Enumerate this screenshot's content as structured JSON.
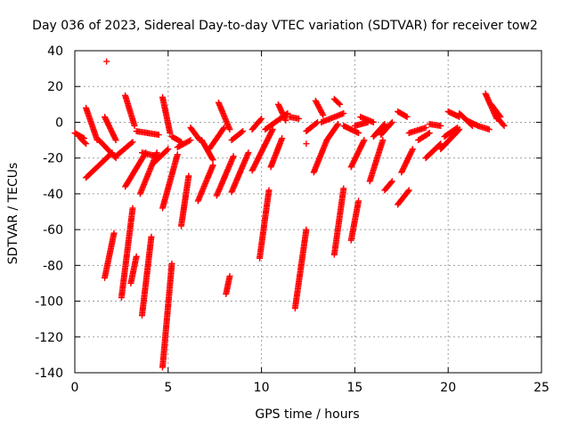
{
  "chart_data": {
    "type": "scatter",
    "title": "Day 036 of 2023, Sidereal Day-to-day VTEC variation (SDTVAR) for receiver tow2",
    "xlabel": "GPS time / hours",
    "ylabel": "SDTVAR / TECUs",
    "xlim": [
      0,
      25
    ],
    "ylim": [
      -140,
      40
    ],
    "xticks": [
      0,
      5,
      10,
      15,
      20,
      25
    ],
    "yticks": [
      -140,
      -120,
      -100,
      -80,
      -60,
      -40,
      -20,
      0,
      20,
      40
    ],
    "xtick_labels": [
      "0",
      "5",
      "10",
      "15",
      "20",
      "25"
    ],
    "ytick_labels": [
      "-140",
      "-120",
      "-100",
      "-80",
      "-60",
      "-40",
      "-20",
      "0",
      "20",
      "40"
    ],
    "grid": true,
    "marker": "plus",
    "marker_color": "#ff0000",
    "arcs": [
      {
        "name": "arc-01",
        "x": [
          0.0,
          0.5
        ],
        "y": [
          -6,
          -9
        ]
      },
      {
        "name": "arc-02",
        "x": [
          0.3,
          0.6
        ],
        "y": [
          -9,
          -12
        ]
      },
      {
        "name": "arc-03",
        "x": [
          0.6,
          1.2
        ],
        "y": [
          8,
          -10
        ]
      },
      {
        "name": "arc-04",
        "x": [
          0.6,
          2.0
        ],
        "y": [
          -31,
          -17
        ]
      },
      {
        "name": "arc-05",
        "x": [
          1.3,
          2.2
        ],
        "y": [
          -10,
          -20
        ]
      },
      {
        "name": "arc-06",
        "x": [
          1.6,
          2.2
        ],
        "y": [
          3,
          -10
        ]
      },
      {
        "name": "arc-07",
        "x": [
          1.6,
          2.1
        ],
        "y": [
          -87,
          -62
        ]
      },
      {
        "name": "arc-08",
        "x": [
          2.2,
          3.1
        ],
        "y": [
          -19,
          -11
        ]
      },
      {
        "name": "arc-09",
        "x": [
          2.5,
          3.1
        ],
        "y": [
          -98,
          -48
        ]
      },
      {
        "name": "arc-10",
        "x": [
          2.7,
          3.8
        ],
        "y": [
          -36,
          -17
        ]
      },
      {
        "name": "arc-11",
        "x": [
          2.7,
          3.2
        ],
        "y": [
          15,
          -2
        ]
      },
      {
        "name": "arc-12",
        "x": [
          3.0,
          3.3
        ],
        "y": [
          -90,
          -75
        ]
      },
      {
        "name": "arc-13",
        "x": [
          3.3,
          4.5
        ],
        "y": [
          -5,
          -7
        ]
      },
      {
        "name": "arc-14",
        "x": [
          3.5,
          4.4
        ],
        "y": [
          -40,
          -17
        ]
      },
      {
        "name": "arc-15",
        "x": [
          3.6,
          4.4
        ],
        "y": [
          -17,
          -19
        ]
      },
      {
        "name": "arc-16",
        "x": [
          3.6,
          4.1
        ],
        "y": [
          -108,
          -64
        ]
      },
      {
        "name": "arc-17",
        "x": [
          4.2,
          5.0
        ],
        "y": [
          -23,
          -15
        ]
      },
      {
        "name": "arc-18",
        "x": [
          4.7,
          5.5
        ],
        "y": [
          -48,
          -18
        ]
      },
      {
        "name": "arc-19",
        "x": [
          4.7,
          5.2
        ],
        "y": [
          -137,
          -79
        ]
      },
      {
        "name": "arc-20",
        "x": [
          4.7,
          5.1
        ],
        "y": [
          14,
          -6
        ]
      },
      {
        "name": "arc-21",
        "x": [
          5.2,
          5.7
        ],
        "y": [
          -8,
          -11
        ]
      },
      {
        "name": "arc-22",
        "x": [
          5.5,
          6.2
        ],
        "y": [
          -14,
          -10
        ]
      },
      {
        "name": "arc-23",
        "x": [
          5.7,
          6.1
        ],
        "y": [
          -58,
          -30
        ]
      },
      {
        "name": "arc-24",
        "x": [
          6.2,
          6.7
        ],
        "y": [
          -3,
          -10
        ]
      },
      {
        "name": "arc-25",
        "x": [
          6.6,
          7.4
        ],
        "y": [
          -44,
          -24
        ]
      },
      {
        "name": "arc-26",
        "x": [
          6.8,
          7.4
        ],
        "y": [
          -10,
          -21
        ]
      },
      {
        "name": "arc-27",
        "x": [
          7.2,
          8.0
        ],
        "y": [
          -15,
          -3
        ]
      },
      {
        "name": "arc-28",
        "x": [
          7.6,
          8.5
        ],
        "y": [
          -41,
          -19
        ]
      },
      {
        "name": "arc-29",
        "x": [
          7.7,
          8.3
        ],
        "y": [
          11,
          -4
        ]
      },
      {
        "name": "arc-30",
        "x": [
          8.1,
          8.3
        ],
        "y": [
          -96,
          -86
        ]
      },
      {
        "name": "arc-31",
        "x": [
          8.4,
          9.3
        ],
        "y": [
          -39,
          -17
        ]
      },
      {
        "name": "arc-32",
        "x": [
          8.4,
          9.0
        ],
        "y": [
          -10,
          -5
        ]
      },
      {
        "name": "arc-33",
        "x": [
          9.5,
          10.6
        ],
        "y": [
          -27,
          -4
        ]
      },
      {
        "name": "arc-34",
        "x": [
          9.5,
          10.0
        ],
        "y": [
          -4,
          2
        ]
      },
      {
        "name": "arc-35",
        "x": [
          9.9,
          10.4
        ],
        "y": [
          -76,
          -38
        ]
      },
      {
        "name": "arc-36",
        "x": [
          10.2,
          11.4
        ],
        "y": [
          -4,
          5
        ]
      },
      {
        "name": "arc-37",
        "x": [
          10.5,
          11.1
        ],
        "y": [
          -25,
          -9
        ]
      },
      {
        "name": "arc-38",
        "x": [
          10.9,
          11.3
        ],
        "y": [
          10,
          1
        ]
      },
      {
        "name": "arc-39",
        "x": [
          11.5,
          12.0
        ],
        "y": [
          3,
          2
        ]
      },
      {
        "name": "arc-40",
        "x": [
          11.8,
          12.4
        ],
        "y": [
          -104,
          -60
        ]
      },
      {
        "name": "arc-41",
        "x": [
          12.4,
          13.0
        ],
        "y": [
          -5,
          0
        ]
      },
      {
        "name": "arc-42",
        "x": [
          12.8,
          13.5
        ],
        "y": [
          -28,
          -10
        ]
      },
      {
        "name": "arc-43",
        "x": [
          12.9,
          13.3
        ],
        "y": [
          12,
          4
        ]
      },
      {
        "name": "arc-44",
        "x": [
          13.2,
          14.4
        ],
        "y": [
          0,
          5
        ]
      },
      {
        "name": "arc-45",
        "x": [
          13.5,
          14.1
        ],
        "y": [
          -10,
          -1
        ]
      },
      {
        "name": "arc-46",
        "x": [
          13.9,
          14.4
        ],
        "y": [
          -74,
          -37
        ]
      },
      {
        "name": "arc-47",
        "x": [
          13.9,
          14.2
        ],
        "y": [
          13,
          10
        ]
      },
      {
        "name": "arc-48",
        "x": [
          14.4,
          15.2
        ],
        "y": [
          -2,
          -6
        ]
      },
      {
        "name": "arc-49",
        "x": [
          14.8,
          15.2
        ],
        "y": [
          -66,
          -44
        ]
      },
      {
        "name": "arc-50",
        "x": [
          14.8,
          15.5
        ],
        "y": [
          -25,
          -10
        ]
      },
      {
        "name": "arc-51",
        "x": [
          15.0,
          15.7
        ],
        "y": [
          -2,
          0
        ]
      },
      {
        "name": "arc-52",
        "x": [
          15.3,
          16.0
        ],
        "y": [
          3,
          0
        ]
      },
      {
        "name": "arc-53",
        "x": [
          15.8,
          16.5
        ],
        "y": [
          -33,
          -10
        ]
      },
      {
        "name": "arc-54",
        "x": [
          16.0,
          16.6
        ],
        "y": [
          -8,
          -1
        ]
      },
      {
        "name": "arc-55",
        "x": [
          16.4,
          17.0
        ],
        "y": [
          -7,
          0
        ]
      },
      {
        "name": "arc-56",
        "x": [
          16.6,
          17.0
        ],
        "y": [
          -38,
          -33
        ]
      },
      {
        "name": "arc-57",
        "x": [
          17.3,
          17.8
        ],
        "y": [
          6,
          3
        ]
      },
      {
        "name": "arc-58",
        "x": [
          17.3,
          17.9
        ],
        "y": [
          -46,
          -38
        ]
      },
      {
        "name": "arc-59",
        "x": [
          17.5,
          18.1
        ],
        "y": [
          -28,
          -15
        ]
      },
      {
        "name": "arc-60",
        "x": [
          17.9,
          18.8
        ],
        "y": [
          -6,
          -3
        ]
      },
      {
        "name": "arc-61",
        "x": [
          18.4,
          19.0
        ],
        "y": [
          -10,
          -6
        ]
      },
      {
        "name": "arc-62",
        "x": [
          18.8,
          19.6
        ],
        "y": [
          -20,
          -12
        ]
      },
      {
        "name": "arc-63",
        "x": [
          19.0,
          19.6
        ],
        "y": [
          -1,
          -2
        ]
      },
      {
        "name": "arc-64",
        "x": [
          19.6,
          20.6
        ],
        "y": [
          -15,
          -4
        ]
      },
      {
        "name": "arc-65",
        "x": [
          19.8,
          20.5
        ],
        "y": [
          -8,
          -3
        ]
      },
      {
        "name": "arc-66",
        "x": [
          20.0,
          20.6
        ],
        "y": [
          6,
          3
        ]
      },
      {
        "name": "arc-67",
        "x": [
          20.6,
          21.3
        ],
        "y": [
          5,
          -2
        ]
      },
      {
        "name": "arc-68",
        "x": [
          21.0,
          21.6
        ],
        "y": [
          1,
          -2
        ]
      },
      {
        "name": "arc-69",
        "x": [
          21.6,
          22.2
        ],
        "y": [
          -2,
          -4
        ]
      },
      {
        "name": "arc-70",
        "x": [
          22.0,
          22.6
        ],
        "y": [
          16,
          2
        ]
      },
      {
        "name": "arc-71",
        "x": [
          22.3,
          22.8
        ],
        "y": [
          10,
          3
        ]
      },
      {
        "name": "arc-72",
        "x": [
          22.6,
          23.0
        ],
        "y": [
          3,
          -2
        ]
      }
    ],
    "outliers": [
      {
        "x": 1.7,
        "y": 34
      },
      {
        "x": 12.4,
        "y": -12
      }
    ]
  }
}
